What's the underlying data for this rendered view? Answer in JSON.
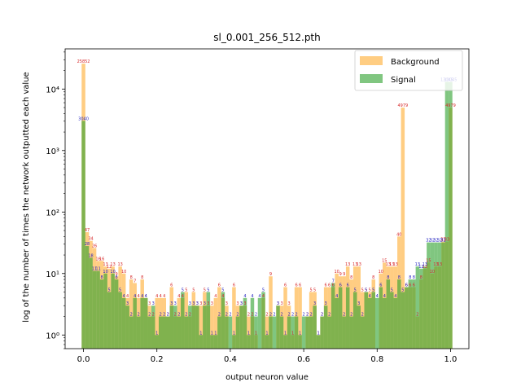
{
  "chart_data": {
    "type": "bar",
    "title": "sl_0.001_256_512.pth",
    "xlabel": "output neuron value",
    "ylabel": "log of the number of times the network outputted each value",
    "xlim": [
      -0.05,
      1.05
    ],
    "ylim": [
      0.6,
      45000
    ],
    "y_scale": "log",
    "x_ticks": [
      0.0,
      0.2,
      0.4,
      0.6,
      0.8,
      1.0
    ],
    "x_tick_labels": [
      "0.0",
      "0.2",
      "0.4",
      "0.6",
      "0.8",
      "1.0"
    ],
    "y_ticks": [
      1,
      10,
      100,
      1000,
      10000
    ],
    "y_tick_labels": [
      "10⁰",
      "10¹",
      "10²",
      "10³",
      "10⁴"
    ],
    "bin_width": 0.01,
    "legend_position": "upper-right",
    "colors": {
      "background": "#ffb84d",
      "signal": "#2ca02c",
      "background_label": "#d62728",
      "signal_label": "#1f1fbf"
    },
    "series": [
      {
        "name": "Background",
        "x": [
          0.0,
          0.01,
          0.02,
          0.03,
          0.04,
          0.05,
          0.06,
          0.07,
          0.08,
          0.09,
          0.1,
          0.11,
          0.12,
          0.13,
          0.14,
          0.15,
          0.16,
          0.17,
          0.18,
          0.19,
          0.2,
          0.21,
          0.22,
          0.23,
          0.24,
          0.25,
          0.26,
          0.27,
          0.28,
          0.29,
          0.3,
          0.31,
          0.32,
          0.33,
          0.34,
          0.35,
          0.36,
          0.37,
          0.38,
          0.39,
          0.41,
          0.42,
          0.43,
          0.44,
          0.45,
          0.46,
          0.47,
          0.49,
          0.5,
          0.51,
          0.53,
          0.54,
          0.55,
          0.56,
          0.57,
          0.58,
          0.59,
          0.61,
          0.62,
          0.63,
          0.64,
          0.65,
          0.66,
          0.67,
          0.68,
          0.69,
          0.7,
          0.71,
          0.72,
          0.73,
          0.74,
          0.75,
          0.76,
          0.77,
          0.78,
          0.79,
          0.81,
          0.82,
          0.83,
          0.84,
          0.85,
          0.86,
          0.87,
          0.88,
          0.89,
          0.9,
          0.91,
          0.92,
          0.93,
          0.94,
          0.95,
          0.96,
          0.97,
          0.98,
          0.99,
          1.0
        ],
        "values": [
          25852,
          47,
          34,
          26,
          16,
          16,
          13,
          12,
          13,
          9,
          13,
          10,
          4,
          8,
          7,
          4,
          8,
          4,
          3,
          2,
          4,
          4,
          4,
          2,
          6,
          2,
          4,
          4,
          5,
          2,
          5,
          3,
          3,
          5,
          3,
          3,
          4,
          6,
          4,
          3,
          6,
          3,
          3,
          3,
          2,
          2,
          1,
          4,
          2,
          9,
          3,
          3,
          6,
          3,
          1,
          6,
          6,
          2,
          5,
          5,
          1,
          2,
          6,
          6,
          6,
          10,
          9,
          9,
          13,
          8,
          13,
          13,
          5,
          5,
          5,
          8,
          10,
          15,
          13,
          13,
          13,
          40,
          4979,
          6,
          6,
          6,
          2,
          8,
          12,
          15,
          10,
          13,
          13,
          33,
          33,
          4979
        ],
        "labels": [
          "25852",
          "47",
          "34",
          "26",
          "16",
          "16",
          "13",
          "12",
          "13",
          "9",
          "13",
          "10",
          "4",
          "8",
          "7",
          "4",
          "8",
          "4",
          "3",
          "2",
          "4",
          "4",
          "4",
          "2",
          "6",
          "2",
          "4",
          "4",
          "5",
          "2",
          "5",
          "3",
          "3",
          "5",
          "3",
          "3",
          "4",
          "6",
          "4",
          "3",
          "6",
          "3",
          "3",
          "3",
          "2",
          "2",
          "1",
          "4",
          "2",
          "9",
          "3",
          "3",
          "6",
          "3",
          "1",
          "6",
          "6",
          "2",
          "5",
          "5",
          "1",
          "2",
          "6",
          "6",
          "6",
          "10",
          "9",
          "9",
          "13",
          "8",
          "13",
          "13",
          "5",
          "5",
          "5",
          "8",
          "10",
          "15",
          "13",
          "13",
          "13",
          "40",
          "4979",
          "6",
          "6",
          "6",
          "2",
          "8",
          "12",
          "15",
          "10",
          "13",
          "13",
          "33",
          "33",
          "4979"
        ]
      },
      {
        "name": "Signal",
        "x": [
          0.0,
          0.01,
          0.02,
          0.03,
          0.04,
          0.05,
          0.06,
          0.07,
          0.08,
          0.09,
          0.1,
          0.11,
          0.12,
          0.13,
          0.14,
          0.15,
          0.16,
          0.17,
          0.18,
          0.19,
          0.2,
          0.21,
          0.22,
          0.23,
          0.24,
          0.25,
          0.26,
          0.27,
          0.28,
          0.29,
          0.3,
          0.31,
          0.32,
          0.33,
          0.34,
          0.35,
          0.36,
          0.37,
          0.38,
          0.39,
          0.4,
          0.41,
          0.42,
          0.43,
          0.44,
          0.45,
          0.46,
          0.47,
          0.48,
          0.49,
          0.5,
          0.51,
          0.52,
          0.53,
          0.54,
          0.55,
          0.56,
          0.57,
          0.58,
          0.59,
          0.6,
          0.61,
          0.62,
          0.63,
          0.64,
          0.65,
          0.66,
          0.67,
          0.68,
          0.69,
          0.7,
          0.71,
          0.72,
          0.73,
          0.74,
          0.75,
          0.76,
          0.77,
          0.78,
          0.79,
          0.8,
          0.81,
          0.82,
          0.83,
          0.84,
          0.85,
          0.86,
          0.87,
          0.88,
          0.89,
          0.9,
          0.91,
          0.92,
          0.93,
          0.94,
          0.95,
          0.96,
          0.97,
          0.98,
          0.99,
          1.0
        ],
        "values": [
          3040,
          28,
          18,
          11,
          11,
          8,
          10,
          5,
          10,
          8,
          5,
          4,
          3,
          2,
          4,
          2,
          4,
          4,
          2,
          3,
          1,
          2,
          2,
          2,
          3,
          3,
          2,
          5,
          2,
          3,
          3,
          3,
          1,
          3,
          5,
          1,
          1,
          2,
          5,
          2,
          2,
          1,
          2,
          3,
          4,
          1,
          4,
          2,
          4,
          5,
          1,
          2,
          2,
          3,
          2,
          1,
          2,
          2,
          2,
          1,
          2,
          2,
          2,
          3,
          1,
          2,
          3,
          2,
          7,
          4,
          6,
          2,
          6,
          2,
          5,
          3,
          2,
          5,
          4,
          5,
          4,
          6,
          4,
          8,
          5,
          4,
          8,
          5,
          6,
          8,
          8,
          13,
          12,
          13,
          32,
          32,
          32,
          32,
          32,
          13045,
          13045
        ],
        "labels": [
          "3040",
          "28",
          "18",
          "11",
          "11",
          "8",
          "10",
          "5",
          "10",
          "8",
          "5",
          "4",
          "3",
          "2",
          "4",
          "2",
          "4",
          "4",
          "2",
          "3",
          "1",
          "2",
          "2",
          "2",
          "3",
          "3",
          "2",
          "5",
          "2",
          "3",
          "3",
          "3",
          "1",
          "3",
          "5",
          "1",
          "1",
          "2",
          "5",
          "2",
          "2",
          "1",
          "2",
          "3",
          "4",
          "1",
          "4",
          "2",
          "4",
          "5",
          "1",
          "2",
          "2",
          "3",
          "2",
          "1",
          "2",
          "2",
          "2",
          "1",
          "2",
          "2",
          "2",
          "3",
          "1",
          "2",
          "3",
          "2",
          "7",
          "4",
          "6",
          "2",
          "6",
          "2",
          "5",
          "3",
          "2",
          "5",
          "4",
          "5",
          "4",
          "6",
          "4",
          "8",
          "5",
          "4",
          "8",
          "5",
          "6",
          "8",
          "8",
          "13",
          "12",
          "13",
          "32",
          "32",
          "32",
          "32",
          "32",
          "13045",
          "13045"
        ]
      }
    ]
  }
}
